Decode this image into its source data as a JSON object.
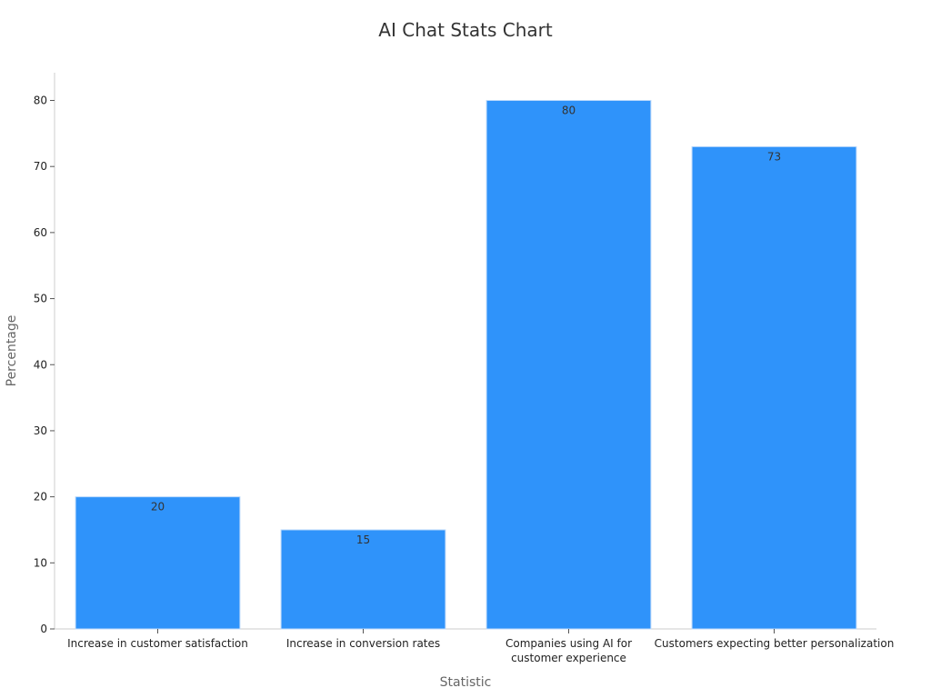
{
  "chart_data": {
    "type": "bar",
    "title": "AI Chat Stats Chart",
    "xlabel": "Statistic",
    "ylabel": "Percentage",
    "categories": [
      "Increase in customer satisfaction",
      "Increase in conversion rates",
      "Companies using AI for customer experience",
      "Customers expecting better personalization"
    ],
    "values": [
      20,
      15,
      80,
      73
    ],
    "data_labels": [
      "20",
      "15",
      "80",
      "73"
    ],
    "ylim": [
      0,
      84
    ],
    "yticks": [
      0,
      10,
      20,
      30,
      40,
      50,
      60,
      70,
      80
    ],
    "grid": false,
    "legend": "none",
    "bar_color": "#2f93fa",
    "bar_edge_color": "#bcd9fb"
  }
}
